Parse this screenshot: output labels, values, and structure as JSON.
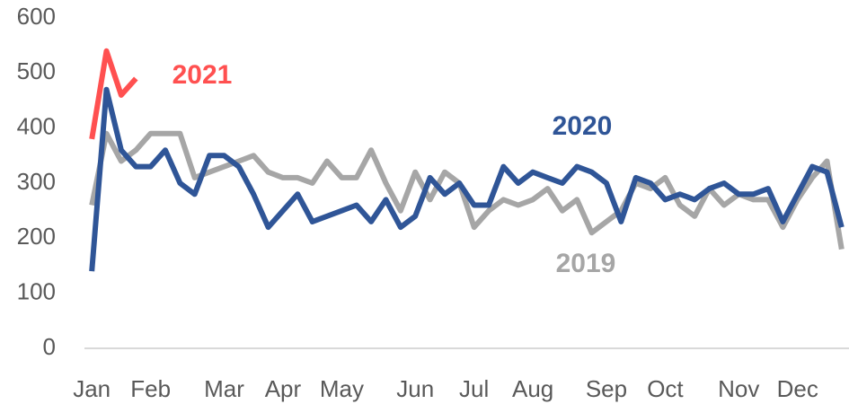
{
  "chart_data": {
    "type": "line",
    "categories": [
      "Jan",
      null,
      null,
      null,
      "Feb",
      null,
      null,
      null,
      null,
      "Mar",
      null,
      null,
      null,
      "Apr",
      null,
      null,
      null,
      "May",
      null,
      null,
      null,
      null,
      "Jun",
      null,
      null,
      null,
      "Jul",
      null,
      null,
      null,
      "Aug",
      null,
      null,
      null,
      null,
      "Sep",
      null,
      null,
      null,
      "Oct",
      null,
      null,
      null,
      null,
      "Nov",
      null,
      null,
      null,
      "Dec",
      null,
      null,
      null
    ],
    "series": [
      {
        "name": "2019",
        "color": "#a6a6a6",
        "values": [
          260,
          390,
          340,
          360,
          390,
          390,
          390,
          310,
          320,
          330,
          340,
          350,
          320,
          310,
          310,
          300,
          340,
          310,
          310,
          360,
          300,
          250,
          320,
          270,
          320,
          300,
          220,
          250,
          270,
          260,
          270,
          290,
          250,
          270,
          210,
          230,
          250,
          300,
          290,
          310,
          260,
          240,
          290,
          260,
          280,
          270,
          270,
          220,
          270,
          310,
          340,
          180
        ]
      },
      {
        "name": "2020",
        "color": "#2f5597",
        "values": [
          140,
          470,
          360,
          330,
          330,
          360,
          300,
          280,
          350,
          350,
          330,
          280,
          220,
          250,
          280,
          230,
          240,
          250,
          260,
          230,
          270,
          220,
          240,
          310,
          280,
          300,
          260,
          260,
          330,
          300,
          320,
          310,
          300,
          330,
          320,
          300,
          230,
          310,
          300,
          270,
          280,
          270,
          290,
          300,
          280,
          280,
          290,
          230,
          280,
          330,
          320,
          220
        ]
      },
      {
        "name": "2021",
        "color": "#ff5050",
        "values": [
          380,
          540,
          460,
          490,
          null,
          null,
          null,
          null,
          null,
          null,
          null,
          null,
          null,
          null,
          null,
          null,
          null,
          null,
          null,
          null,
          null,
          null,
          null,
          null,
          null,
          null,
          null,
          null,
          null,
          null,
          null,
          null,
          null,
          null,
          null,
          null,
          null,
          null,
          null,
          null,
          null,
          null,
          null,
          null,
          null,
          null,
          null,
          null,
          null,
          null,
          null,
          null
        ]
      }
    ],
    "ylim": [
      0,
      600
    ],
    "yticks": [
      0,
      100,
      200,
      300,
      400,
      500,
      600
    ]
  }
}
